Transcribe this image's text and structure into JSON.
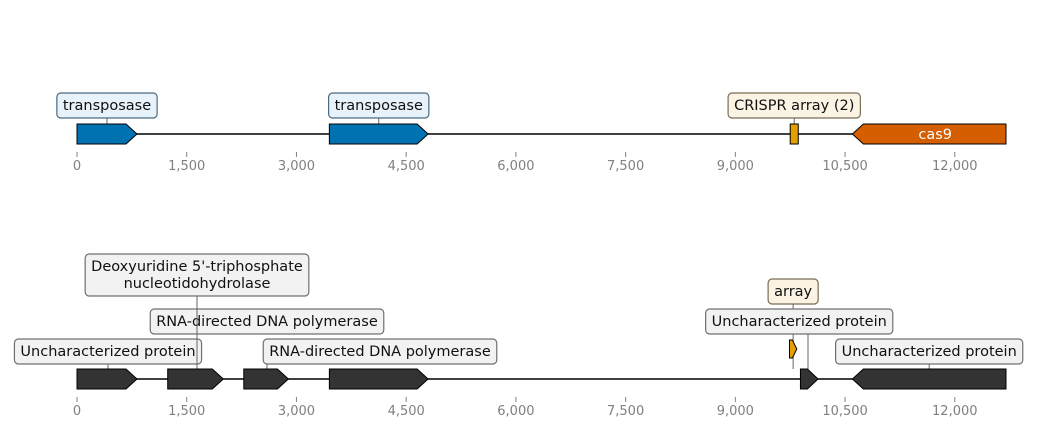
{
  "tracks": [
    {
      "features": [
        {
          "start": 0,
          "end": 820,
          "strand": 1,
          "color": "#0072B2",
          "label": "transposase",
          "label_style": "blue"
        },
        {
          "start": 3450,
          "end": 4800,
          "strand": 1,
          "color": "#0072B2",
          "label": "transposase",
          "label_style": "blue"
        },
        {
          "start": 9750,
          "end": 9860,
          "strand": 0,
          "color": "#E69F00",
          "label": "CRISPR array (2)",
          "label_style": "orange"
        },
        {
          "start": 10600,
          "end": 12700,
          "strand": -1,
          "color": "#D55E00",
          "label": "cas9",
          "label_style": "inside"
        }
      ],
      "ticks": [
        "0",
        "1,500",
        "3,000",
        "4,500",
        "6,000",
        "7,500",
        "9,000",
        "10,500",
        "12,000"
      ]
    },
    {
      "features": [
        {
          "start": 0,
          "end": 820,
          "strand": 1,
          "color": "#333333",
          "label": "Uncharacterized protein",
          "label_style": "gray",
          "level": 0
        },
        {
          "start": 1240,
          "end": 2000,
          "strand": 1,
          "color": "#333333",
          "label": "RNA-directed DNA polymerase",
          "label_style": "gray",
          "level": 1
        },
        {
          "start": 1240,
          "end": 2000,
          "strand": 1,
          "color": "#333333",
          "label_lines": [
            "Deoxyuridine 5'-triphosphate",
            "nucleotidohydrolase"
          ],
          "label_style": "gray",
          "level": 2,
          "no_shape": true
        },
        {
          "start": 2280,
          "end": 2890,
          "strand": 1,
          "color": "#333333",
          "label": "RNA-directed DNA polymerase",
          "label_style": "gray",
          "level": 0
        },
        {
          "start": 3450,
          "end": 4800,
          "strand": 1,
          "color": "#333333",
          "label": "",
          "label_style": "none"
        },
        {
          "start": 9740,
          "end": 9840,
          "strand": 1,
          "color": "#E69F00",
          "label": "array",
          "label_style": "orange",
          "level": 2,
          "small": true
        },
        {
          "start": 9890,
          "end": 10130,
          "strand": 1,
          "color": "#333333",
          "label": "Uncharacterized protein",
          "label_style": "gray",
          "level": 1
        },
        {
          "start": 10600,
          "end": 12700,
          "strand": -1,
          "color": "#333333",
          "label": "Uncharacterized protein",
          "label_style": "gray",
          "level": 0
        }
      ],
      "ticks": [
        "0",
        "1,500",
        "3,000",
        "4,500",
        "6,000",
        "7,500",
        "9,000",
        "10,500",
        "12,000"
      ]
    }
  ],
  "sequence_length": 12700
}
